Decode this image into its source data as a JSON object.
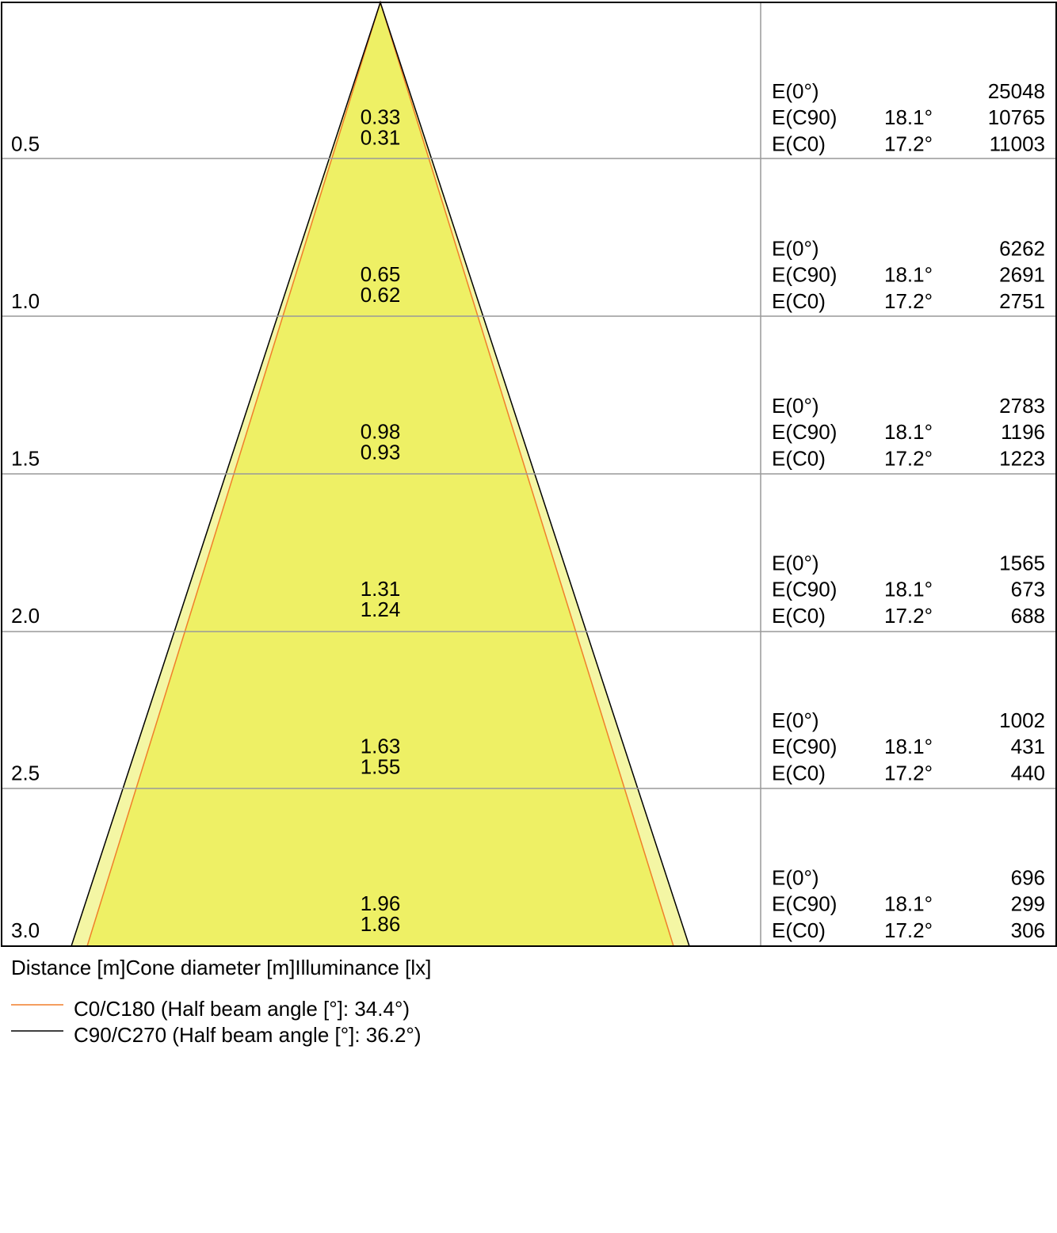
{
  "rows": [
    {
      "distance": "0.5",
      "diameter_c90": "0.33",
      "diameter_c0": "0.31",
      "illuminance": [
        {
          "label": "E(0°)",
          "value": "25048"
        },
        {
          "label": "E(C90)",
          "angle": "18.1°",
          "value": "10765"
        },
        {
          "label": "E(C0)",
          "angle": "17.2°",
          "value": "11003"
        }
      ]
    },
    {
      "distance": "1.0",
      "diameter_c90": "0.65",
      "diameter_c0": "0.62",
      "illuminance": [
        {
          "label": "E(0°)",
          "value": "6262"
        },
        {
          "label": "E(C90)",
          "angle": "18.1°",
          "value": "2691"
        },
        {
          "label": "E(C0)",
          "angle": "17.2°",
          "value": "2751"
        }
      ]
    },
    {
      "distance": "1.5",
      "diameter_c90": "0.98",
      "diameter_c0": "0.93",
      "illuminance": [
        {
          "label": "E(0°)",
          "value": "2783"
        },
        {
          "label": "E(C90)",
          "angle": "18.1°",
          "value": "1196"
        },
        {
          "label": "E(C0)",
          "angle": "17.2°",
          "value": "1223"
        }
      ]
    },
    {
      "distance": "2.0",
      "diameter_c90": "1.31",
      "diameter_c0": "1.24",
      "illuminance": [
        {
          "label": "E(0°)",
          "value": "1565"
        },
        {
          "label": "E(C90)",
          "angle": "18.1°",
          "value": "673"
        },
        {
          "label": "E(C0)",
          "angle": "17.2°",
          "value": "688"
        }
      ]
    },
    {
      "distance": "2.5",
      "diameter_c90": "1.63",
      "diameter_c0": "1.55",
      "illuminance": [
        {
          "label": "E(0°)",
          "value": "1002"
        },
        {
          "label": "E(C90)",
          "angle": "18.1°",
          "value": "431"
        },
        {
          "label": "E(C0)",
          "angle": "17.2°",
          "value": "440"
        }
      ]
    },
    {
      "distance": "3.0",
      "diameter_c90": "1.96",
      "diameter_c0": "1.86",
      "illuminance": [
        {
          "label": "E(0°)",
          "value": "696"
        },
        {
          "label": "E(C90)",
          "angle": "18.1°",
          "value": "299"
        },
        {
          "label": "E(C0)",
          "angle": "17.2°",
          "value": "306"
        }
      ]
    }
  ],
  "header": [
    "Distance [m]",
    "Cone diameter [m]",
    "Illuminance [lx]"
  ],
  "legend": [
    "C0/C180 (Half beam angle [°]: 34.4°)",
    "C90/C270 (Half beam angle [°]: 36.2°)"
  ]
}
